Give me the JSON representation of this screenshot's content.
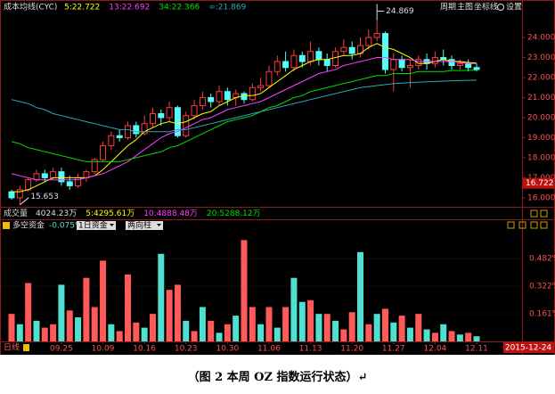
{
  "chart_data": [
    {
      "type": "candlestick",
      "title": "成本均线(CYC)",
      "toolbar": [
        "周期",
        "主图",
        "坐标线",
        "设置"
      ],
      "open": [
        16.3,
        16.0,
        16.4,
        16.9,
        17.2,
        17.0,
        17.3,
        16.8,
        16.6,
        17.0,
        17.3,
        17.9,
        18.6,
        19.1,
        19.0,
        19.6,
        19.2,
        19.7,
        20.2,
        20.0,
        20.5,
        19.1,
        20.1,
        20.6,
        21.0,
        20.8,
        21.3,
        21.0,
        21.2,
        20.9,
        21.5,
        21.6,
        22.3,
        22.8,
        22.5,
        23.1,
        22.8,
        23.3,
        22.9,
        22.6,
        23.3,
        23.5,
        23.2,
        23.6,
        24.0,
        24.2,
        22.4,
        22.9,
        22.5,
        22.6,
        22.9,
        22.7,
        23.0,
        22.9,
        22.6,
        22.7,
        22.5
      ],
      "close": [
        16.0,
        16.4,
        16.9,
        17.2,
        17.0,
        17.3,
        16.8,
        16.6,
        17.0,
        17.3,
        17.9,
        18.6,
        19.1,
        19.0,
        19.6,
        19.2,
        19.7,
        20.2,
        20.0,
        20.5,
        19.1,
        20.1,
        20.6,
        21.0,
        20.8,
        21.3,
        20.9,
        21.2,
        20.9,
        21.5,
        21.6,
        22.3,
        22.8,
        22.5,
        23.1,
        22.8,
        23.3,
        22.9,
        22.6,
        23.3,
        23.5,
        23.2,
        23.6,
        24.0,
        24.2,
        22.4,
        22.9,
        22.5,
        22.6,
        22.9,
        22.7,
        23.0,
        22.9,
        22.6,
        22.7,
        22.5,
        22.4
      ],
      "high": [
        16.4,
        16.6,
        17.0,
        17.4,
        17.4,
        17.5,
        17.5,
        17.1,
        17.2,
        17.4,
        18.0,
        18.8,
        19.3,
        19.4,
        19.8,
        19.8,
        20.1,
        20.5,
        20.4,
        20.8,
        20.6,
        20.3,
        20.9,
        21.3,
        21.2,
        21.6,
        21.5,
        21.4,
        21.3,
        21.7,
        22.0,
        22.6,
        23.1,
        23.3,
        23.4,
        23.3,
        23.8,
        23.5,
        23.2,
        23.5,
        23.9,
        23.8,
        24.0,
        24.4,
        24.869,
        24.3,
        23.2,
        23.1,
        22.9,
        23.1,
        23.2,
        23.3,
        23.4,
        23.1,
        22.9,
        22.9,
        22.7
      ],
      "low": [
        15.9,
        15.653,
        16.3,
        16.8,
        16.8,
        16.9,
        16.6,
        16.4,
        16.5,
        16.8,
        17.2,
        17.8,
        18.4,
        18.8,
        18.9,
        19.0,
        19.1,
        19.5,
        19.6,
        19.8,
        19.0,
        19.0,
        19.9,
        20.4,
        20.5,
        20.6,
        20.6,
        20.6,
        20.7,
        20.8,
        21.3,
        21.5,
        22.1,
        22.3,
        22.3,
        22.5,
        22.6,
        22.6,
        22.3,
        22.5,
        23.1,
        22.9,
        23.0,
        23.4,
        23.8,
        22.2,
        21.3,
        22.3,
        21.5,
        22.4,
        22.4,
        22.5,
        22.6,
        22.4,
        22.4,
        22.3,
        22.3
      ],
      "up_color": "#ff3c3c",
      "down_color": "#54fcfc",
      "series": [
        {
          "name": "5:22.722",
          "color": "#ffff00",
          "values": [
            16.3,
            16.3,
            16.4,
            16.6,
            16.8,
            17.0,
            17.0,
            17.0,
            17.0,
            17.0,
            17.1,
            17.4,
            17.8,
            18.2,
            18.6,
            18.9,
            19.3,
            19.5,
            19.7,
            19.8,
            19.7,
            19.8,
            20.0,
            20.2,
            20.3,
            20.6,
            20.8,
            21.0,
            21.1,
            21.1,
            21.2,
            21.5,
            21.8,
            22.1,
            22.4,
            22.6,
            22.8,
            22.9,
            22.9,
            23.0,
            23.1,
            23.1,
            23.2,
            23.5,
            23.7,
            23.5,
            23.4,
            23.2,
            23.0,
            22.7,
            22.7,
            22.8,
            22.9,
            22.8,
            22.8,
            22.75,
            22.722
          ]
        },
        {
          "name": "13:22.692",
          "color": "#ff40ff",
          "values": [
            17.2,
            17.1,
            17.0,
            16.9,
            16.9,
            16.9,
            16.9,
            16.9,
            16.9,
            17.0,
            17.1,
            17.2,
            17.4,
            17.6,
            17.8,
            18.1,
            18.4,
            18.7,
            19.0,
            19.2,
            19.3,
            19.5,
            19.7,
            19.9,
            20.0,
            20.2,
            20.4,
            20.5,
            20.6,
            20.7,
            20.8,
            21.0,
            21.2,
            21.4,
            21.6,
            21.8,
            22.0,
            22.2,
            22.3,
            22.4,
            22.6,
            22.7,
            22.8,
            22.9,
            23.0,
            23.0,
            22.9,
            22.9,
            22.9,
            22.8,
            22.8,
            22.8,
            22.8,
            22.8,
            22.75,
            22.7,
            22.692
          ]
        },
        {
          "name": "34:22.366",
          "color": "#00e000",
          "values": [
            18.8,
            18.7,
            18.5,
            18.4,
            18.3,
            18.2,
            18.1,
            18.0,
            17.9,
            17.8,
            17.8,
            17.8,
            17.8,
            17.8,
            17.9,
            18.0,
            18.1,
            18.2,
            18.3,
            18.5,
            18.6,
            18.8,
            19.0,
            19.2,
            19.4,
            19.6,
            19.8,
            19.9,
            20.0,
            20.1,
            20.3,
            20.5,
            20.6,
            20.8,
            21.0,
            21.1,
            21.3,
            21.4,
            21.5,
            21.6,
            21.7,
            21.8,
            21.9,
            22.0,
            22.1,
            22.1,
            22.2,
            22.2,
            22.2,
            22.3,
            22.3,
            22.3,
            22.3,
            22.35,
            22.35,
            22.36,
            22.366
          ]
        },
        {
          "name": "∞:21.869",
          "color": "#2fa8b8",
          "values": [
            20.9,
            20.8,
            20.7,
            20.5,
            20.4,
            20.2,
            20.1,
            20.0,
            19.9,
            19.8,
            19.7,
            19.6,
            19.5,
            19.4,
            19.4,
            19.3,
            19.3,
            19.3,
            19.3,
            19.3,
            19.4,
            19.4,
            19.5,
            19.6,
            19.7,
            19.8,
            19.9,
            20.0,
            20.1,
            20.2,
            20.3,
            20.4,
            20.5,
            20.6,
            20.7,
            20.8,
            20.9,
            21.0,
            21.1,
            21.2,
            21.3,
            21.4,
            21.5,
            21.55,
            21.6,
            21.65,
            21.7,
            21.72,
            21.75,
            21.77,
            21.79,
            21.8,
            21.82,
            21.84,
            21.85,
            21.86,
            21.869
          ]
        }
      ],
      "ylim": [
        15.55,
        25.87
      ],
      "yticks": [
        {
          "value": 16,
          "label": "16.000"
        },
        {
          "value": 17,
          "label": "17.000"
        },
        {
          "value": 18,
          "label": "18.000"
        },
        {
          "value": 19,
          "label": "19.000"
        },
        {
          "value": 20,
          "label": "20.000"
        },
        {
          "value": 21,
          "label": "21.000"
        },
        {
          "value": 22,
          "label": "22.000"
        },
        {
          "value": 23,
          "label": "23.000"
        },
        {
          "value": 24,
          "label": "24.000"
        }
      ],
      "price_marker": 16.722,
      "volume": {
        "title": "成交量",
        "items": [
          "4024.23万",
          "5:4295.61万",
          "10:4888.48万",
          "20:5288.12万"
        ]
      }
    },
    {
      "type": "bar",
      "title": "多空资金",
      "summary": -0.075,
      "summary_label": "-0.075%",
      "dropdowns": [
        "1日资金",
        "两向柱"
      ],
      "categories": [
        null,
        null,
        null,
        null,
        null,
        null,
        "09.25",
        null,
        null,
        null,
        null,
        "10.09",
        null,
        null,
        null,
        null,
        "10.16",
        null,
        null,
        null,
        null,
        "10.23",
        null,
        null,
        null,
        null,
        "10.30",
        null,
        null,
        null,
        null,
        "11.06",
        null,
        null,
        null,
        null,
        "11.13",
        null,
        null,
        null,
        null,
        "11.20",
        null,
        null,
        null,
        null,
        "11.27",
        null,
        null,
        null,
        null,
        "12.04",
        null,
        null,
        null,
        null,
        "12.11"
      ],
      "values": [
        0.16,
        0.1,
        0.34,
        0.12,
        0.08,
        0.1,
        0.33,
        0.18,
        0.14,
        0.37,
        0.2,
        0.47,
        0.1,
        0.06,
        0.39,
        0.11,
        0.08,
        0.16,
        0.51,
        0.3,
        0.33,
        0.12,
        0.06,
        0.2,
        0.12,
        0.05,
        0.1,
        0.15,
        0.59,
        0.2,
        0.1,
        0.2,
        0.08,
        0.2,
        0.37,
        0.23,
        0.24,
        0.16,
        0.16,
        0.12,
        0.07,
        0.17,
        0.52,
        0.1,
        0.16,
        0.19,
        0.11,
        0.15,
        0.08,
        0.16,
        0.07,
        0.05,
        0.1,
        0.06,
        0.04,
        0.05,
        0.03
      ],
      "colors": [
        "#ff5a5a",
        "#4fe0d0",
        "#ff5a5a",
        "#4fe0d0",
        "#ff5a5a",
        "#ff5a5a",
        "#4fe0d0",
        "#ff5a5a",
        "#4fe0d0",
        "#ff5a5a",
        "#ff5a5a",
        "#ff5a5a",
        "#4fe0d0",
        "#ff5a5a",
        "#ff5a5a",
        "#ff5a5a",
        "#4fe0d0",
        "#ff5a5a",
        "#4fe0d0",
        "#ff5a5a",
        "#ff5a5a",
        "#4fe0d0",
        "#ff5a5a",
        "#4fe0d0",
        "#ff5a5a",
        "#4fe0d0",
        "#ff5a5a",
        "#4fe0d0",
        "#ff5a5a",
        "#ff5a5a",
        "#4fe0d0",
        "#ff5a5a",
        "#4fe0d0",
        "#ff5a5a",
        "#4fe0d0",
        "#4fe0d0",
        "#ff5a5a",
        "#4fe0d0",
        "#ff5a5a",
        "#4fe0d0",
        "#ff5a5a",
        "#ff5a5a",
        "#4fe0d0",
        "#ff5a5a",
        "#4fe0d0",
        "#ff5a5a",
        "#4fe0d0",
        "#ff5a5a",
        "#4fe0d0",
        "#ff5a5a",
        "#4fe0d0",
        "#ff5a5a",
        "#4fe0d0",
        "#ff5a5a",
        "#4fe0d0",
        "#ff5a5a",
        "#4fe0d0"
      ],
      "ylim": [
        0,
        0.628
      ],
      "yticks": [
        {
          "value": 0.161,
          "label": "0.161%"
        },
        {
          "value": 0.322,
          "label": "0.322%"
        },
        {
          "value": 0.482,
          "label": "0.482%"
        }
      ],
      "grid": true,
      "period_label": "日线",
      "date_marker": "2015-12-24"
    }
  ],
  "caption": "（图 2 本周 OZ 指数运行状态）↵"
}
